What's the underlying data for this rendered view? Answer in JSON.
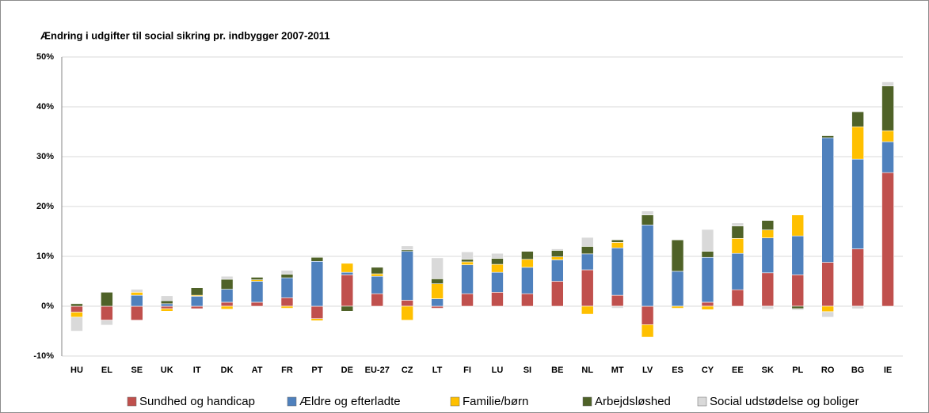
{
  "chart_data": {
    "type": "stacked_bar",
    "title": "Ændring i udgifter til social sikring pr. indbygger 2007-2011",
    "categories": [
      "HU",
      "EL",
      "SE",
      "UK",
      "IT",
      "DK",
      "AT",
      "FR",
      "PT",
      "DE",
      "EU-27",
      "CZ",
      "LT",
      "FI",
      "LU",
      "SI",
      "BE",
      "NL",
      "MT",
      "LV",
      "ES",
      "CY",
      "EE",
      "SK",
      "PL",
      "RO",
      "BG",
      "IE"
    ],
    "series": [
      {
        "name": "Sundhed og handicap",
        "color": "#c0504d",
        "values": [
          -1.2,
          -2.8,
          -2.8,
          -0.5,
          -0.5,
          0.8,
          0.8,
          1.7,
          -2.5,
          6.3,
          2.5,
          1.2,
          -0.4,
          2.5,
          2.8,
          2.5,
          5,
          7.3,
          2.2,
          -3.7,
          0,
          0.8,
          3.3,
          6.7,
          6.3,
          8.8,
          11.5,
          26.8
        ]
      },
      {
        "name": "Ældre og efterladte",
        "color": "#4f81bd",
        "values": [
          0,
          0,
          2.2,
          0.5,
          2,
          2.6,
          4.2,
          4,
          9,
          0.5,
          3.5,
          9.8,
          1.5,
          5.8,
          4,
          5.3,
          4.3,
          3.2,
          9.5,
          16.3,
          7,
          9,
          7.3,
          7,
          7.8,
          25,
          18,
          6.2
        ]
      },
      {
        "name": "Familie/børn",
        "color": "#ffc000",
        "values": [
          -1,
          0,
          0.6,
          -0.5,
          0.2,
          -0.6,
          0.3,
          -0.4,
          -0.4,
          1.8,
          0.5,
          -2.8,
          3,
          0.6,
          1.6,
          1.6,
          0.6,
          -1.6,
          1.1,
          -2.5,
          -0.4,
          -0.7,
          3,
          1.6,
          4.2,
          -1.1,
          6.5,
          2.2
        ]
      },
      {
        "name": "Arbejdsløshed",
        "color": "#4f6228",
        "values": [
          0.5,
          2.8,
          0,
          0.6,
          1.5,
          2,
          0.5,
          0.7,
          0.8,
          -1,
          1.3,
          0.3,
          1,
          0.5,
          1.2,
          1.6,
          1.3,
          1.5,
          0.5,
          2,
          6.3,
          1.2,
          2.5,
          1.9,
          -0.5,
          0.4,
          3,
          9
        ]
      },
      {
        "name": "Social udstødelse og boliger",
        "color": "#d9d9d9",
        "values": [
          -2.8,
          -1,
          0.6,
          1,
          0,
          0.6,
          0,
          0.8,
          0,
          0,
          0,
          0.8,
          4.2,
          1.5,
          1,
          0,
          0.3,
          1.8,
          -0.4,
          0.8,
          0,
          4.4,
          0.6,
          -0.6,
          -0.3,
          -1.1,
          -0.5,
          0.8
        ]
      }
    ],
    "ylim": [
      -10,
      50
    ],
    "yticks": [
      {
        "value": -10,
        "label": "-10%"
      },
      {
        "value": 0,
        "label": "0%"
      },
      {
        "value": 10,
        "label": "10%"
      },
      {
        "value": 20,
        "label": "20%"
      },
      {
        "value": 30,
        "label": "30%"
      },
      {
        "value": 40,
        "label": "40%"
      },
      {
        "value": 50,
        "label": "50%"
      }
    ],
    "grid": true
  }
}
